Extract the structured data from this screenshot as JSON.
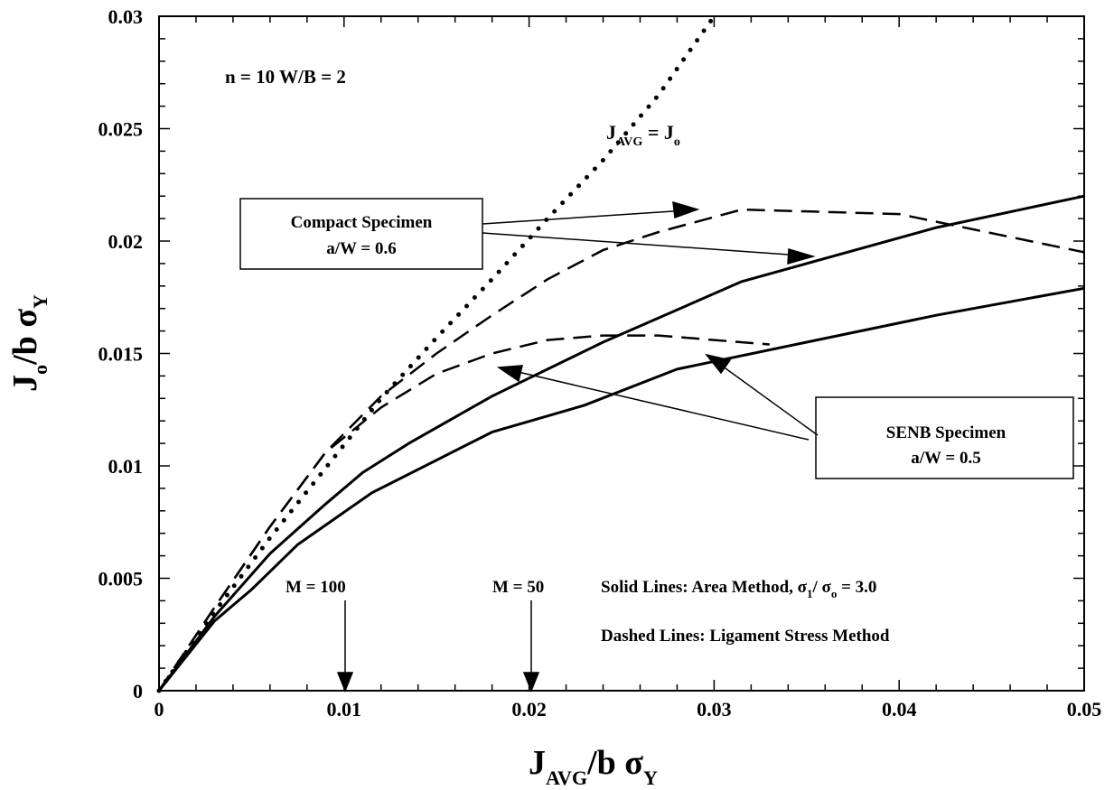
{
  "chart_data": {
    "type": "line",
    "xlim": [
      0,
      0.05
    ],
    "ylim": [
      0,
      0.03
    ],
    "x_ticks": [
      "0",
      "0.01",
      "0.02",
      "0.03",
      "0.04",
      "0.05"
    ],
    "y_ticks": [
      "0",
      "0.005",
      "0.01",
      "0.015",
      "0.02",
      "0.025",
      "0.03"
    ],
    "xlabel": {
      "main": "J",
      "sub": "AVG",
      "rest": "/b σ",
      "sub2": "Y"
    },
    "ylabel": {
      "main": "J",
      "sub": "o",
      "rest": "/b σ",
      "sub2": "Y"
    },
    "grid": false,
    "series": [
      {
        "style": "dotted",
        "points": [
          [
            0,
            0
          ],
          [
            0.003,
            0.0035
          ],
          [
            0.006,
            0.0068
          ],
          [
            0.009,
            0.0099
          ],
          [
            0.012,
            0.013
          ],
          [
            0.015,
            0.0157
          ],
          [
            0.018,
            0.0183
          ],
          [
            0.021,
            0.021
          ],
          [
            0.024,
            0.0236
          ],
          [
            0.027,
            0.0265
          ],
          [
            0.03,
            0.03
          ]
        ]
      },
      {
        "style": "dashed",
        "points": [
          [
            0,
            0
          ],
          [
            0.003,
            0.0037
          ],
          [
            0.006,
            0.0073
          ],
          [
            0.009,
            0.0106
          ],
          [
            0.012,
            0.0131
          ],
          [
            0.015,
            0.015
          ],
          [
            0.018,
            0.0167
          ],
          [
            0.021,
            0.0183
          ],
          [
            0.024,
            0.0196
          ],
          [
            0.027,
            0.0204
          ],
          [
            0.0315,
            0.0214
          ],
          [
            0.04,
            0.0212
          ],
          [
            0.05,
            0.0195
          ]
        ]
      },
      {
        "style": "dashed",
        "points": [
          [
            0,
            0
          ],
          [
            0.003,
            0.0037
          ],
          [
            0.006,
            0.0073
          ],
          [
            0.009,
            0.0106
          ],
          [
            0.012,
            0.0126
          ],
          [
            0.015,
            0.0141
          ],
          [
            0.018,
            0.015
          ],
          [
            0.021,
            0.0156
          ],
          [
            0.024,
            0.0158
          ],
          [
            0.027,
            0.0158
          ],
          [
            0.03,
            0.0156
          ],
          [
            0.033,
            0.0154
          ]
        ]
      },
      {
        "style": "solid",
        "points": [
          [
            0,
            0
          ],
          [
            0.003,
            0.0033
          ],
          [
            0.006,
            0.0061
          ],
          [
            0.009,
            0.0083
          ],
          [
            0.011,
            0.0097
          ],
          [
            0.0135,
            0.011
          ],
          [
            0.018,
            0.0131
          ],
          [
            0.024,
            0.0155
          ],
          [
            0.0315,
            0.0182
          ],
          [
            0.042,
            0.0206
          ],
          [
            0.05,
            0.022
          ]
        ]
      },
      {
        "style": "solid",
        "points": [
          [
            0,
            0
          ],
          [
            0.003,
            0.0031
          ],
          [
            0.005,
            0.0045
          ],
          [
            0.0075,
            0.0065
          ],
          [
            0.0115,
            0.0088
          ],
          [
            0.018,
            0.0115
          ],
          [
            0.023,
            0.0127
          ],
          [
            0.028,
            0.0143
          ],
          [
            0.035,
            0.0155
          ],
          [
            0.042,
            0.0167
          ],
          [
            0.05,
            0.0179
          ]
        ]
      }
    ],
    "annotations": {
      "params": "n = 10  W/B = 2",
      "diagonal_label": {
        "main": "J",
        "sub": "AVG",
        "eq": " = J",
        "sub2": "o"
      },
      "compact_box": {
        "line1": "Compact Specimen",
        "line2": "a/W = 0.6"
      },
      "senb_box": {
        "line1": "SENB Specimen",
        "line2": "a/W = 0.5"
      },
      "m100": "M = 100",
      "m50": "M = 50",
      "solid_note": {
        "text": "Solid Lines: Area Method, σ",
        "sub1": "1",
        "mid": "/ σ",
        "sub2": "o",
        "end": " = 3.0"
      },
      "dashed_note": "Dashed Lines: Ligament Stress Method"
    }
  }
}
